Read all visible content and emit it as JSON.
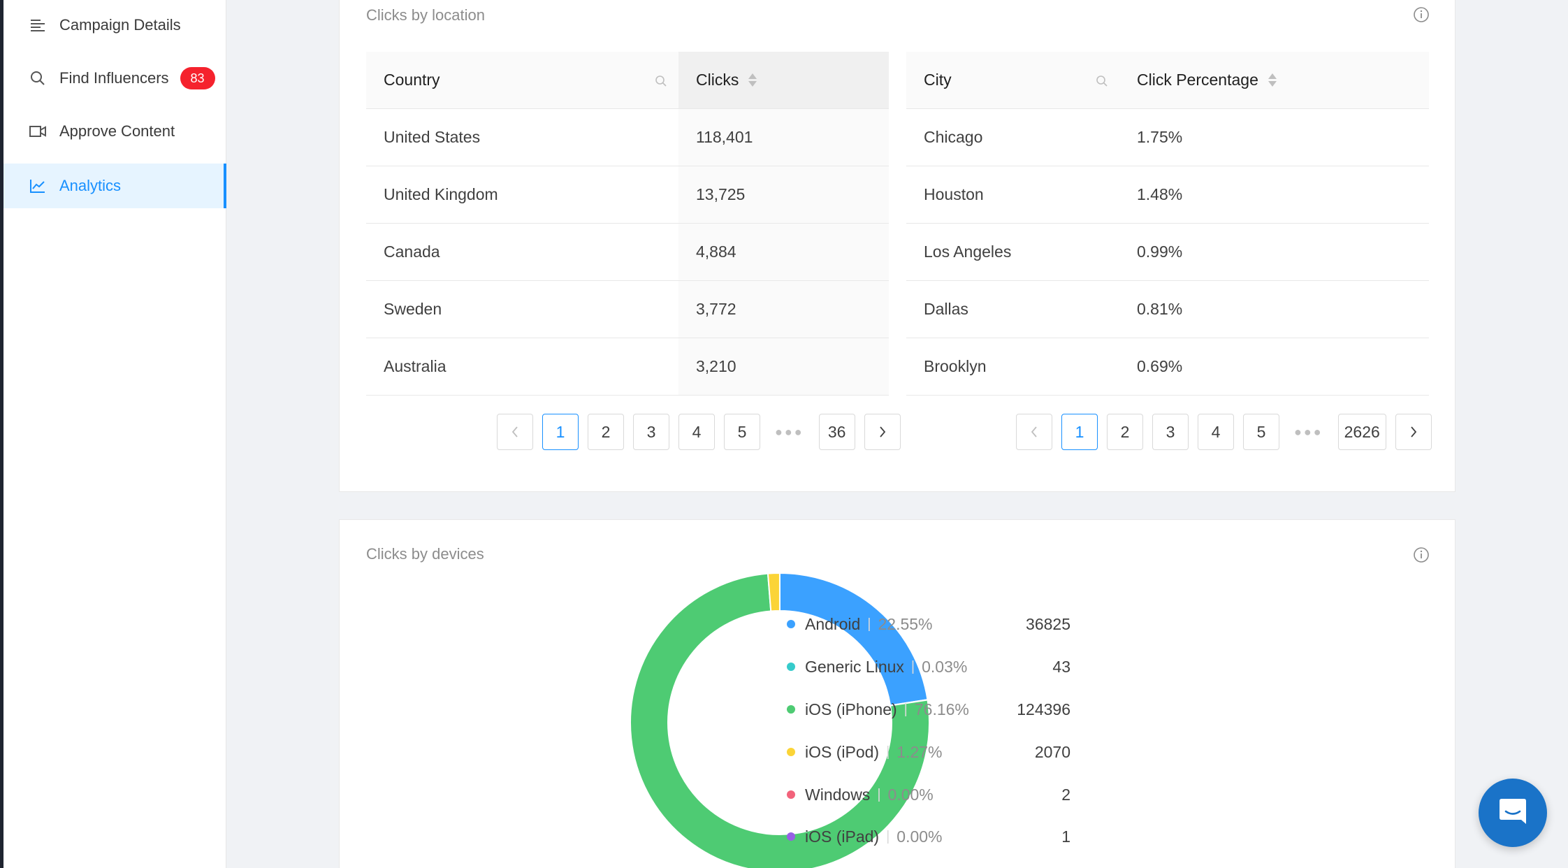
{
  "sidebar": {
    "items": [
      {
        "label": "Campaign Details",
        "icon": "menu-lines-icon"
      },
      {
        "label": "Find Influencers",
        "icon": "search-icon",
        "badge": "83"
      },
      {
        "label": "Approve Content",
        "icon": "video-icon"
      },
      {
        "label": "Analytics",
        "icon": "line-chart-icon",
        "active": true
      }
    ]
  },
  "location_card": {
    "title": "Clicks by location",
    "country_table": {
      "headers": {
        "country": "Country",
        "clicks": "Clicks"
      },
      "rows": [
        {
          "country": "United States",
          "clicks": "118,401"
        },
        {
          "country": "United Kingdom",
          "clicks": "13,725"
        },
        {
          "country": "Canada",
          "clicks": "4,884"
        },
        {
          "country": "Sweden",
          "clicks": "3,772"
        },
        {
          "country": "Australia",
          "clicks": "3,210"
        }
      ],
      "pager": {
        "pages": [
          "1",
          "2",
          "3",
          "4",
          "5"
        ],
        "last": "36",
        "current": "1"
      }
    },
    "city_table": {
      "headers": {
        "city": "City",
        "pct": "Click Percentage"
      },
      "rows": [
        {
          "city": "Chicago",
          "pct": "1.75%"
        },
        {
          "city": "Houston",
          "pct": "1.48%"
        },
        {
          "city": "Los Angeles",
          "pct": "0.99%"
        },
        {
          "city": "Dallas",
          "pct": "0.81%"
        },
        {
          "city": "Brooklyn",
          "pct": "0.69%"
        }
      ],
      "pager": {
        "pages": [
          "1",
          "2",
          "3",
          "4",
          "5"
        ],
        "last": "2626",
        "current": "1"
      }
    }
  },
  "devices_card": {
    "title": "Clicks by devices",
    "legend": [
      {
        "name": "Android",
        "pct": "22.55%",
        "value": "36825",
        "color": "#3ba1ff"
      },
      {
        "name": "Generic Linux",
        "pct": "0.03%",
        "value": "43",
        "color": "#36cbcb"
      },
      {
        "name": "iOS (iPhone)",
        "pct": "76.16%",
        "value": "124396",
        "color": "#4ecb73"
      },
      {
        "name": "iOS (iPod)",
        "pct": "1.27%",
        "value": "2070",
        "color": "#fbd437"
      },
      {
        "name": "Windows",
        "pct": "0.00%",
        "value": "2",
        "color": "#f2637b"
      },
      {
        "name": "iOS (iPad)",
        "pct": "0.00%",
        "value": "1",
        "color": "#975fe5"
      }
    ]
  },
  "chart_data": {
    "type": "pie",
    "categories": [
      "Android",
      "Generic Linux",
      "iOS (iPhone)",
      "iOS (iPod)",
      "Windows",
      "iOS (iPad)"
    ],
    "values": [
      36825,
      43,
      124396,
      2070,
      2,
      1
    ],
    "colors": [
      "#3ba1ff",
      "#36cbcb",
      "#4ecb73",
      "#fbd437",
      "#f2637b",
      "#975fe5"
    ],
    "donut": true
  }
}
